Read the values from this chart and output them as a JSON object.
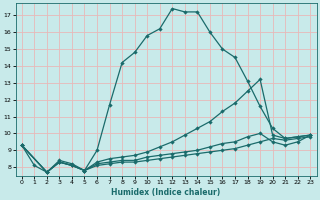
{
  "xlabel": "Humidex (Indice chaleur)",
  "bg_color": "#c8eaea",
  "grid_color": "#e8b8b8",
  "line_color": "#1a6b6b",
  "xlim": [
    -0.5,
    23.5
  ],
  "ylim": [
    7.5,
    17.7
  ],
  "xticks": [
    0,
    1,
    2,
    3,
    4,
    5,
    6,
    7,
    8,
    9,
    10,
    11,
    12,
    13,
    14,
    15,
    16,
    17,
    18,
    19,
    20,
    21,
    22,
    23
  ],
  "yticks": [
    8,
    9,
    10,
    11,
    12,
    13,
    14,
    15,
    16,
    17
  ],
  "curve1_x": [
    0,
    1,
    2,
    3,
    4,
    5,
    6,
    7,
    8,
    9,
    10,
    11,
    12,
    13,
    14,
    15,
    16,
    17,
    18,
    19,
    20,
    21,
    22,
    23
  ],
  "curve1_y": [
    9.3,
    8.1,
    7.7,
    8.4,
    8.2,
    7.8,
    9.0,
    11.7,
    14.2,
    14.8,
    15.8,
    16.2,
    17.4,
    17.2,
    17.2,
    16.0,
    15.0,
    14.5,
    13.1,
    11.6,
    10.3,
    9.7,
    9.8,
    9.9
  ],
  "curve2_x": [
    0,
    2,
    3,
    4,
    5,
    6,
    7,
    8,
    9,
    10,
    11,
    12,
    13,
    14,
    15,
    16,
    17,
    18,
    19,
    20,
    21,
    22,
    23
  ],
  "curve2_y": [
    9.3,
    7.7,
    8.3,
    8.1,
    7.8,
    8.3,
    8.5,
    8.6,
    8.7,
    8.9,
    9.2,
    9.5,
    9.9,
    10.3,
    10.7,
    11.3,
    11.8,
    12.5,
    13.2,
    9.9,
    9.7,
    9.8,
    9.9
  ],
  "curve3_x": [
    0,
    2,
    3,
    4,
    5,
    6,
    7,
    8,
    9,
    10,
    11,
    12,
    13,
    14,
    15,
    16,
    17,
    18,
    19,
    20,
    21,
    22,
    23
  ],
  "curve3_y": [
    9.3,
    7.7,
    8.3,
    8.1,
    7.8,
    8.2,
    8.3,
    8.4,
    8.4,
    8.6,
    8.7,
    8.8,
    8.9,
    9.0,
    9.2,
    9.4,
    9.5,
    9.8,
    10.0,
    9.5,
    9.3,
    9.5,
    9.9
  ],
  "curve4_x": [
    0,
    2,
    3,
    4,
    5,
    6,
    7,
    8,
    9,
    10,
    11,
    12,
    13,
    14,
    15,
    16,
    17,
    18,
    19,
    20,
    21,
    22,
    23
  ],
  "curve4_y": [
    9.3,
    7.7,
    8.3,
    8.1,
    7.8,
    8.1,
    8.2,
    8.3,
    8.3,
    8.4,
    8.5,
    8.6,
    8.7,
    8.8,
    8.9,
    9.0,
    9.1,
    9.3,
    9.5,
    9.7,
    9.6,
    9.7,
    9.8
  ]
}
